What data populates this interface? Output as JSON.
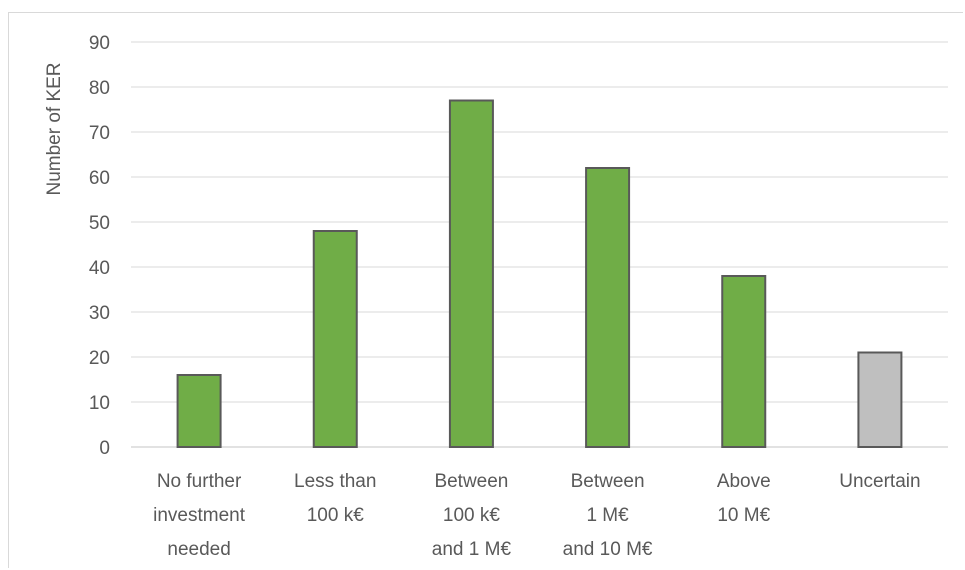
{
  "chart_data": {
    "type": "bar",
    "title": "",
    "ylabel": "Number of KER",
    "xlabel": "",
    "ylim": [
      0,
      90
    ],
    "yticks": [
      0,
      10,
      20,
      30,
      40,
      50,
      60,
      70,
      80,
      90
    ],
    "grid": true,
    "legend": "none",
    "categories": [
      [
        "No further",
        "investment",
        "needed"
      ],
      [
        "Less than",
        "100 k€"
      ],
      [
        "Between",
        "100 k€",
        "and 1 M€"
      ],
      [
        "Between",
        "1 M€",
        "and 10 M€"
      ],
      [
        "Above",
        "10 M€"
      ],
      [
        "Uncertain"
      ]
    ],
    "values": [
      16,
      48,
      77,
      62,
      38,
      21
    ],
    "colors": [
      "#70ad47",
      "#70ad47",
      "#70ad47",
      "#70ad47",
      "#70ad47",
      "#bfbfbf"
    ],
    "bar_stroke": "#595959",
    "gridline_color": "#d9d9d9"
  }
}
